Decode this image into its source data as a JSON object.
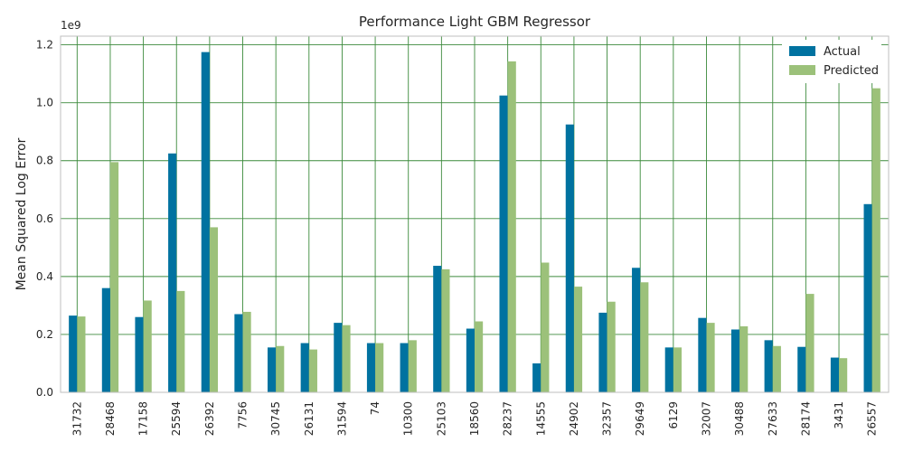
{
  "chart_data": {
    "type": "bar",
    "title": "Performance Light GBM Regressor",
    "xlabel": "",
    "ylabel": "Mean Squared Log Error",
    "y_offset_text": "1e9",
    "ylim": [
      0,
      1.23
    ],
    "y_ticks": [
      "0.0",
      "0.2",
      "0.4",
      "0.6",
      "0.8",
      "1.0",
      "1.2"
    ],
    "grid": true,
    "legend_position": "top-right",
    "categories": [
      "31732",
      "28468",
      "17158",
      "25594",
      "26392",
      "7756",
      "30745",
      "26131",
      "31594",
      "74",
      "10300",
      "25103",
      "18560",
      "28237",
      "14555",
      "24902",
      "32357",
      "29649",
      "6129",
      "32007",
      "30488",
      "27633",
      "28174",
      "3431",
      "26557"
    ],
    "series": [
      {
        "name": "Actual",
        "color": "#0072a0",
        "values": [
          0.265,
          0.36,
          0.26,
          0.825,
          1.175,
          0.27,
          0.155,
          0.17,
          0.24,
          0.17,
          0.17,
          0.437,
          0.22,
          1.025,
          0.1,
          0.925,
          0.275,
          0.43,
          0.155,
          0.257,
          0.217,
          0.18,
          0.157,
          0.12,
          0.65
        ]
      },
      {
        "name": "Predicted",
        "color": "#9cc17a",
        "values": [
          0.262,
          0.795,
          0.317,
          0.35,
          0.57,
          0.278,
          0.16,
          0.148,
          0.232,
          0.17,
          0.18,
          0.425,
          0.245,
          1.143,
          0.448,
          0.365,
          0.313,
          0.38,
          0.155,
          0.24,
          0.228,
          0.16,
          0.34,
          0.118,
          1.05
        ]
      }
    ]
  }
}
